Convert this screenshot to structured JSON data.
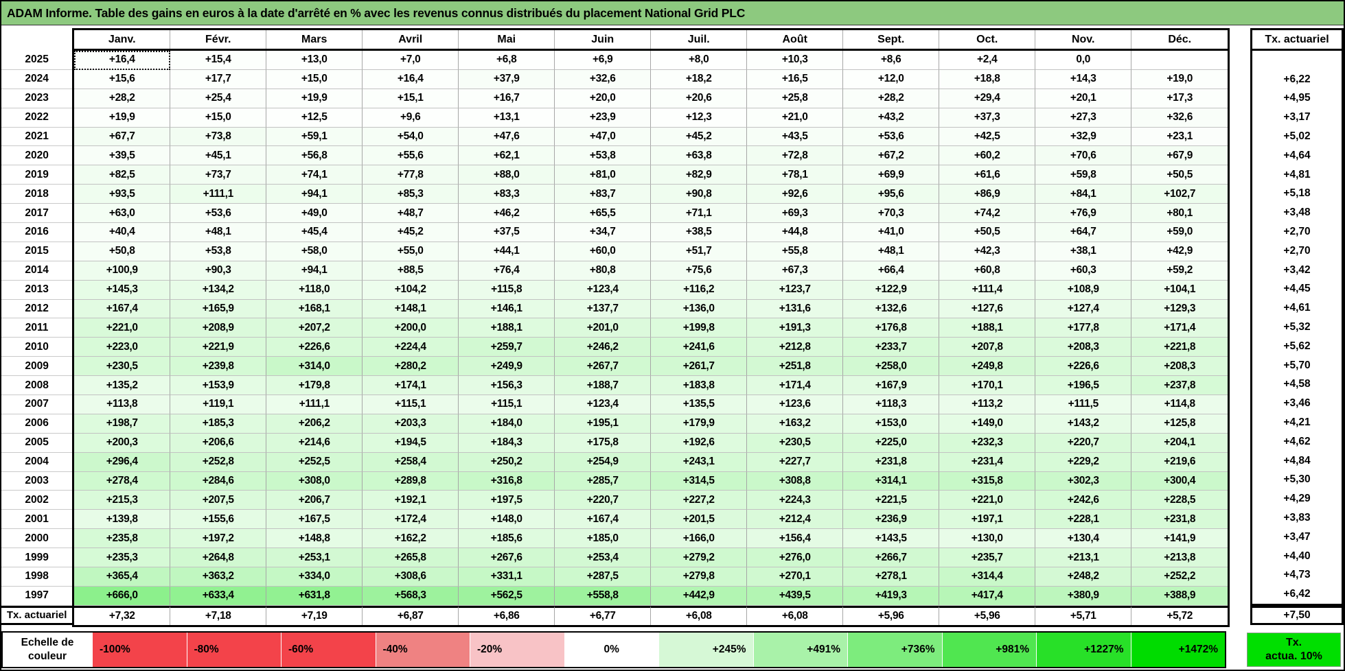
{
  "title": "ADAM Informe. Table des gains en euros à la date d'arrêté en % avec les revenus connus distribués du placement National Grid PLC",
  "columns": [
    "Janv.",
    "Févr.",
    "Mars",
    "Avril",
    "Mai",
    "Juin",
    "Juil.",
    "Août",
    "Sept.",
    "Oct.",
    "Nov.",
    "Déc."
  ],
  "tx_header": "Tx. actuariel",
  "active_cell": {
    "year": "2025",
    "column": "Janv."
  },
  "rows": [
    {
      "year": "2025",
      "values": [
        "+16,4",
        "+15,4",
        "+13,0",
        "+7,0",
        "+6,8",
        "+6,9",
        "+8,0",
        "+10,3",
        "+8,6",
        "+2,4",
        "0,0",
        ""
      ],
      "tx": ""
    },
    {
      "year": "2024",
      "values": [
        "+15,6",
        "+17,7",
        "+15,0",
        "+16,4",
        "+37,9",
        "+32,6",
        "+18,2",
        "+16,5",
        "+12,0",
        "+18,8",
        "+14,3",
        "+19,0"
      ],
      "tx": "+6,22"
    },
    {
      "year": "2023",
      "values": [
        "+28,2",
        "+25,4",
        "+19,9",
        "+15,1",
        "+16,7",
        "+20,0",
        "+20,6",
        "+25,8",
        "+28,2",
        "+29,4",
        "+20,1",
        "+17,3"
      ],
      "tx": "+4,95"
    },
    {
      "year": "2022",
      "values": [
        "+19,9",
        "+15,0",
        "+12,5",
        "+9,6",
        "+13,1",
        "+23,9",
        "+12,3",
        "+21,0",
        "+43,2",
        "+37,3",
        "+27,3",
        "+32,6"
      ],
      "tx": "+3,17"
    },
    {
      "year": "2021",
      "values": [
        "+67,7",
        "+73,8",
        "+59,1",
        "+54,0",
        "+47,6",
        "+47,0",
        "+45,2",
        "+43,5",
        "+53,6",
        "+42,5",
        "+32,9",
        "+23,1"
      ],
      "tx": "+5,02"
    },
    {
      "year": "2020",
      "values": [
        "+39,5",
        "+45,1",
        "+56,8",
        "+55,6",
        "+62,1",
        "+53,8",
        "+63,8",
        "+72,8",
        "+67,2",
        "+60,2",
        "+70,6",
        "+67,9"
      ],
      "tx": "+4,64"
    },
    {
      "year": "2019",
      "values": [
        "+82,5",
        "+73,7",
        "+74,1",
        "+77,8",
        "+88,0",
        "+81,0",
        "+82,9",
        "+78,1",
        "+69,9",
        "+61,6",
        "+59,8",
        "+50,5"
      ],
      "tx": "+4,81"
    },
    {
      "year": "2018",
      "values": [
        "+93,5",
        "+111,1",
        "+94,1",
        "+85,3",
        "+83,3",
        "+83,7",
        "+90,8",
        "+92,6",
        "+95,6",
        "+86,9",
        "+84,1",
        "+102,7"
      ],
      "tx": "+5,18"
    },
    {
      "year": "2017",
      "values": [
        "+63,0",
        "+53,6",
        "+49,0",
        "+48,7",
        "+46,2",
        "+65,5",
        "+71,1",
        "+69,3",
        "+70,3",
        "+74,2",
        "+76,9",
        "+80,1"
      ],
      "tx": "+3,48"
    },
    {
      "year": "2016",
      "values": [
        "+40,4",
        "+48,1",
        "+45,4",
        "+45,2",
        "+37,5",
        "+34,7",
        "+38,5",
        "+44,8",
        "+41,0",
        "+50,5",
        "+64,7",
        "+59,0"
      ],
      "tx": "+2,70"
    },
    {
      "year": "2015",
      "values": [
        "+50,8",
        "+53,8",
        "+58,0",
        "+55,0",
        "+44,1",
        "+60,0",
        "+51,7",
        "+55,8",
        "+48,1",
        "+42,3",
        "+38,1",
        "+42,9"
      ],
      "tx": "+2,70"
    },
    {
      "year": "2014",
      "values": [
        "+100,9",
        "+90,3",
        "+94,1",
        "+88,5",
        "+76,4",
        "+80,8",
        "+75,6",
        "+67,3",
        "+66,4",
        "+60,8",
        "+60,3",
        "+59,2"
      ],
      "tx": "+3,42"
    },
    {
      "year": "2013",
      "values": [
        "+145,3",
        "+134,2",
        "+118,0",
        "+104,2",
        "+115,8",
        "+123,4",
        "+116,2",
        "+123,7",
        "+122,9",
        "+111,4",
        "+108,9",
        "+104,1"
      ],
      "tx": "+4,45"
    },
    {
      "year": "2012",
      "values": [
        "+167,4",
        "+165,9",
        "+168,1",
        "+148,1",
        "+146,1",
        "+137,7",
        "+136,0",
        "+131,6",
        "+132,6",
        "+127,6",
        "+127,4",
        "+129,3"
      ],
      "tx": "+4,61"
    },
    {
      "year": "2011",
      "values": [
        "+221,0",
        "+208,9",
        "+207,2",
        "+200,0",
        "+188,1",
        "+201,0",
        "+199,8",
        "+191,3",
        "+176,8",
        "+188,1",
        "+177,8",
        "+171,4"
      ],
      "tx": "+5,32"
    },
    {
      "year": "2010",
      "values": [
        "+223,0",
        "+221,9",
        "+226,6",
        "+224,4",
        "+259,7",
        "+246,2",
        "+241,6",
        "+212,8",
        "+233,7",
        "+207,8",
        "+208,3",
        "+221,8"
      ],
      "tx": "+5,62"
    },
    {
      "year": "2009",
      "values": [
        "+230,5",
        "+239,8",
        "+314,0",
        "+280,2",
        "+249,9",
        "+267,7",
        "+261,7",
        "+251,8",
        "+258,0",
        "+249,8",
        "+226,6",
        "+208,3"
      ],
      "tx": "+5,70"
    },
    {
      "year": "2008",
      "values": [
        "+135,2",
        "+153,9",
        "+179,8",
        "+174,1",
        "+156,3",
        "+188,7",
        "+183,8",
        "+171,4",
        "+167,9",
        "+170,1",
        "+196,5",
        "+237,8"
      ],
      "tx": "+4,58"
    },
    {
      "year": "2007",
      "values": [
        "+113,8",
        "+119,1",
        "+111,1",
        "+115,1",
        "+115,1",
        "+123,4",
        "+135,5",
        "+123,6",
        "+118,3",
        "+113,2",
        "+111,5",
        "+114,8"
      ],
      "tx": "+3,46"
    },
    {
      "year": "2006",
      "values": [
        "+198,7",
        "+185,3",
        "+206,2",
        "+203,3",
        "+184,0",
        "+195,1",
        "+179,9",
        "+163,2",
        "+153,0",
        "+149,0",
        "+143,2",
        "+125,8"
      ],
      "tx": "+4,21"
    },
    {
      "year": "2005",
      "values": [
        "+200,3",
        "+206,6",
        "+214,6",
        "+194,5",
        "+184,3",
        "+175,8",
        "+192,6",
        "+230,5",
        "+225,0",
        "+232,3",
        "+220,7",
        "+204,1"
      ],
      "tx": "+4,62"
    },
    {
      "year": "2004",
      "values": [
        "+296,4",
        "+252,8",
        "+252,5",
        "+258,4",
        "+250,2",
        "+254,9",
        "+243,1",
        "+227,7",
        "+231,8",
        "+231,4",
        "+229,2",
        "+219,6"
      ],
      "tx": "+4,84"
    },
    {
      "year": "2003",
      "values": [
        "+278,4",
        "+284,6",
        "+308,0",
        "+289,8",
        "+316,8",
        "+285,7",
        "+314,5",
        "+308,8",
        "+314,1",
        "+315,8",
        "+302,3",
        "+300,4"
      ],
      "tx": "+5,30"
    },
    {
      "year": "2002",
      "values": [
        "+215,3",
        "+207,5",
        "+206,7",
        "+192,1",
        "+197,5",
        "+220,7",
        "+227,2",
        "+224,3",
        "+221,5",
        "+221,0",
        "+242,6",
        "+228,5"
      ],
      "tx": "+4,29"
    },
    {
      "year": "2001",
      "values": [
        "+139,8",
        "+155,6",
        "+167,5",
        "+172,4",
        "+148,0",
        "+167,4",
        "+201,5",
        "+212,4",
        "+236,9",
        "+197,1",
        "+228,1",
        "+231,8"
      ],
      "tx": "+3,83"
    },
    {
      "year": "2000",
      "values": [
        "+235,8",
        "+197,2",
        "+148,8",
        "+162,2",
        "+185,6",
        "+185,0",
        "+166,0",
        "+156,4",
        "+143,5",
        "+130,0",
        "+130,4",
        "+141,9"
      ],
      "tx": "+3,47"
    },
    {
      "year": "1999",
      "values": [
        "+235,3",
        "+264,8",
        "+253,1",
        "+265,8",
        "+267,6",
        "+253,4",
        "+279,2",
        "+276,0",
        "+266,7",
        "+235,7",
        "+213,1",
        "+213,8"
      ],
      "tx": "+4,40"
    },
    {
      "year": "1998",
      "values": [
        "+365,4",
        "+363,2",
        "+334,0",
        "+308,6",
        "+331,1",
        "+287,5",
        "+279,8",
        "+270,1",
        "+278,1",
        "+314,4",
        "+248,2",
        "+252,2"
      ],
      "tx": "+4,73"
    },
    {
      "year": "1997",
      "values": [
        "+666,0",
        "+633,4",
        "+631,8",
        "+568,3",
        "+562,5",
        "+558,8",
        "+442,9",
        "+439,5",
        "+419,3",
        "+417,4",
        "+380,9",
        "+388,9"
      ],
      "tx": "+6,42"
    }
  ],
  "total_row": {
    "label": "Tx. actuariel",
    "values": [
      "+7,32",
      "+7,18",
      "+7,19",
      "+6,87",
      "+6,86",
      "+6,77",
      "+6,08",
      "+6,08",
      "+5,96",
      "+5,96",
      "+5,71",
      "+5,72"
    ],
    "tx": "+7,50"
  },
  "legend": {
    "label": "Echelle de couleur",
    "entries": [
      {
        "label": "-100%",
        "color": "#F3434A",
        "align": "left"
      },
      {
        "label": "-80%",
        "color": "#F3434A",
        "align": "left"
      },
      {
        "label": "-60%",
        "color": "#F3434A",
        "align": "left"
      },
      {
        "label": "-40%",
        "color": "#EF8282",
        "align": "left"
      },
      {
        "label": "-20%",
        "color": "#F8C3C6",
        "align": "left"
      },
      {
        "label": "0%",
        "color": "#FFFFFF",
        "align": "center"
      },
      {
        "label": "+245%",
        "color": "#D6F8D6",
        "align": "right"
      },
      {
        "label": "+491%",
        "color": "#A9F2A9",
        "align": "right"
      },
      {
        "label": "+736%",
        "color": "#7DEC7D",
        "align": "right"
      },
      {
        "label": "+981%",
        "color": "#50E650",
        "align": "right"
      },
      {
        "label": "+1227%",
        "color": "#28E028",
        "align": "right"
      },
      {
        "label": "+1472%",
        "color": "#00DC00",
        "align": "right"
      }
    ],
    "tx_label": "Tx.\nactua. 10%",
    "tx_color": "#00DF00"
  },
  "colors": {
    "title_bg": "#8DC97F",
    "positive_max": "#00DE00",
    "scale_max_percent": 1472
  }
}
